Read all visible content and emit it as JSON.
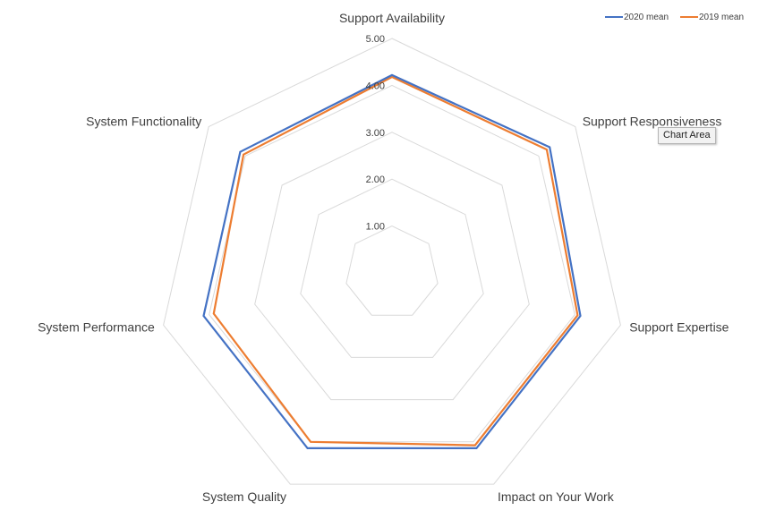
{
  "chart_data": {
    "type": "radar",
    "categories": [
      "Support Availability",
      "Support Responsiveness",
      "Support Expertise",
      "Impact on Your Work",
      "System Quality",
      "System Performance",
      "System Functionality"
    ],
    "series": [
      {
        "name": "2020 mean",
        "color": "#4472c4",
        "values": [
          4.22,
          4.3,
          4.12,
          4.15,
          4.15,
          4.12,
          4.14
        ]
      },
      {
        "name": "2019 mean",
        "color": "#ed7d31",
        "values": [
          4.18,
          4.22,
          4.06,
          4.08,
          4.0,
          3.9,
          4.05
        ]
      }
    ],
    "r_ticks": [
      "1.00",
      "2.00",
      "3.00",
      "4.00",
      "5.00"
    ],
    "r_range": [
      0,
      5
    ],
    "grid": true,
    "legend_position": "top-right"
  },
  "tooltip": {
    "text": "Chart Area"
  }
}
